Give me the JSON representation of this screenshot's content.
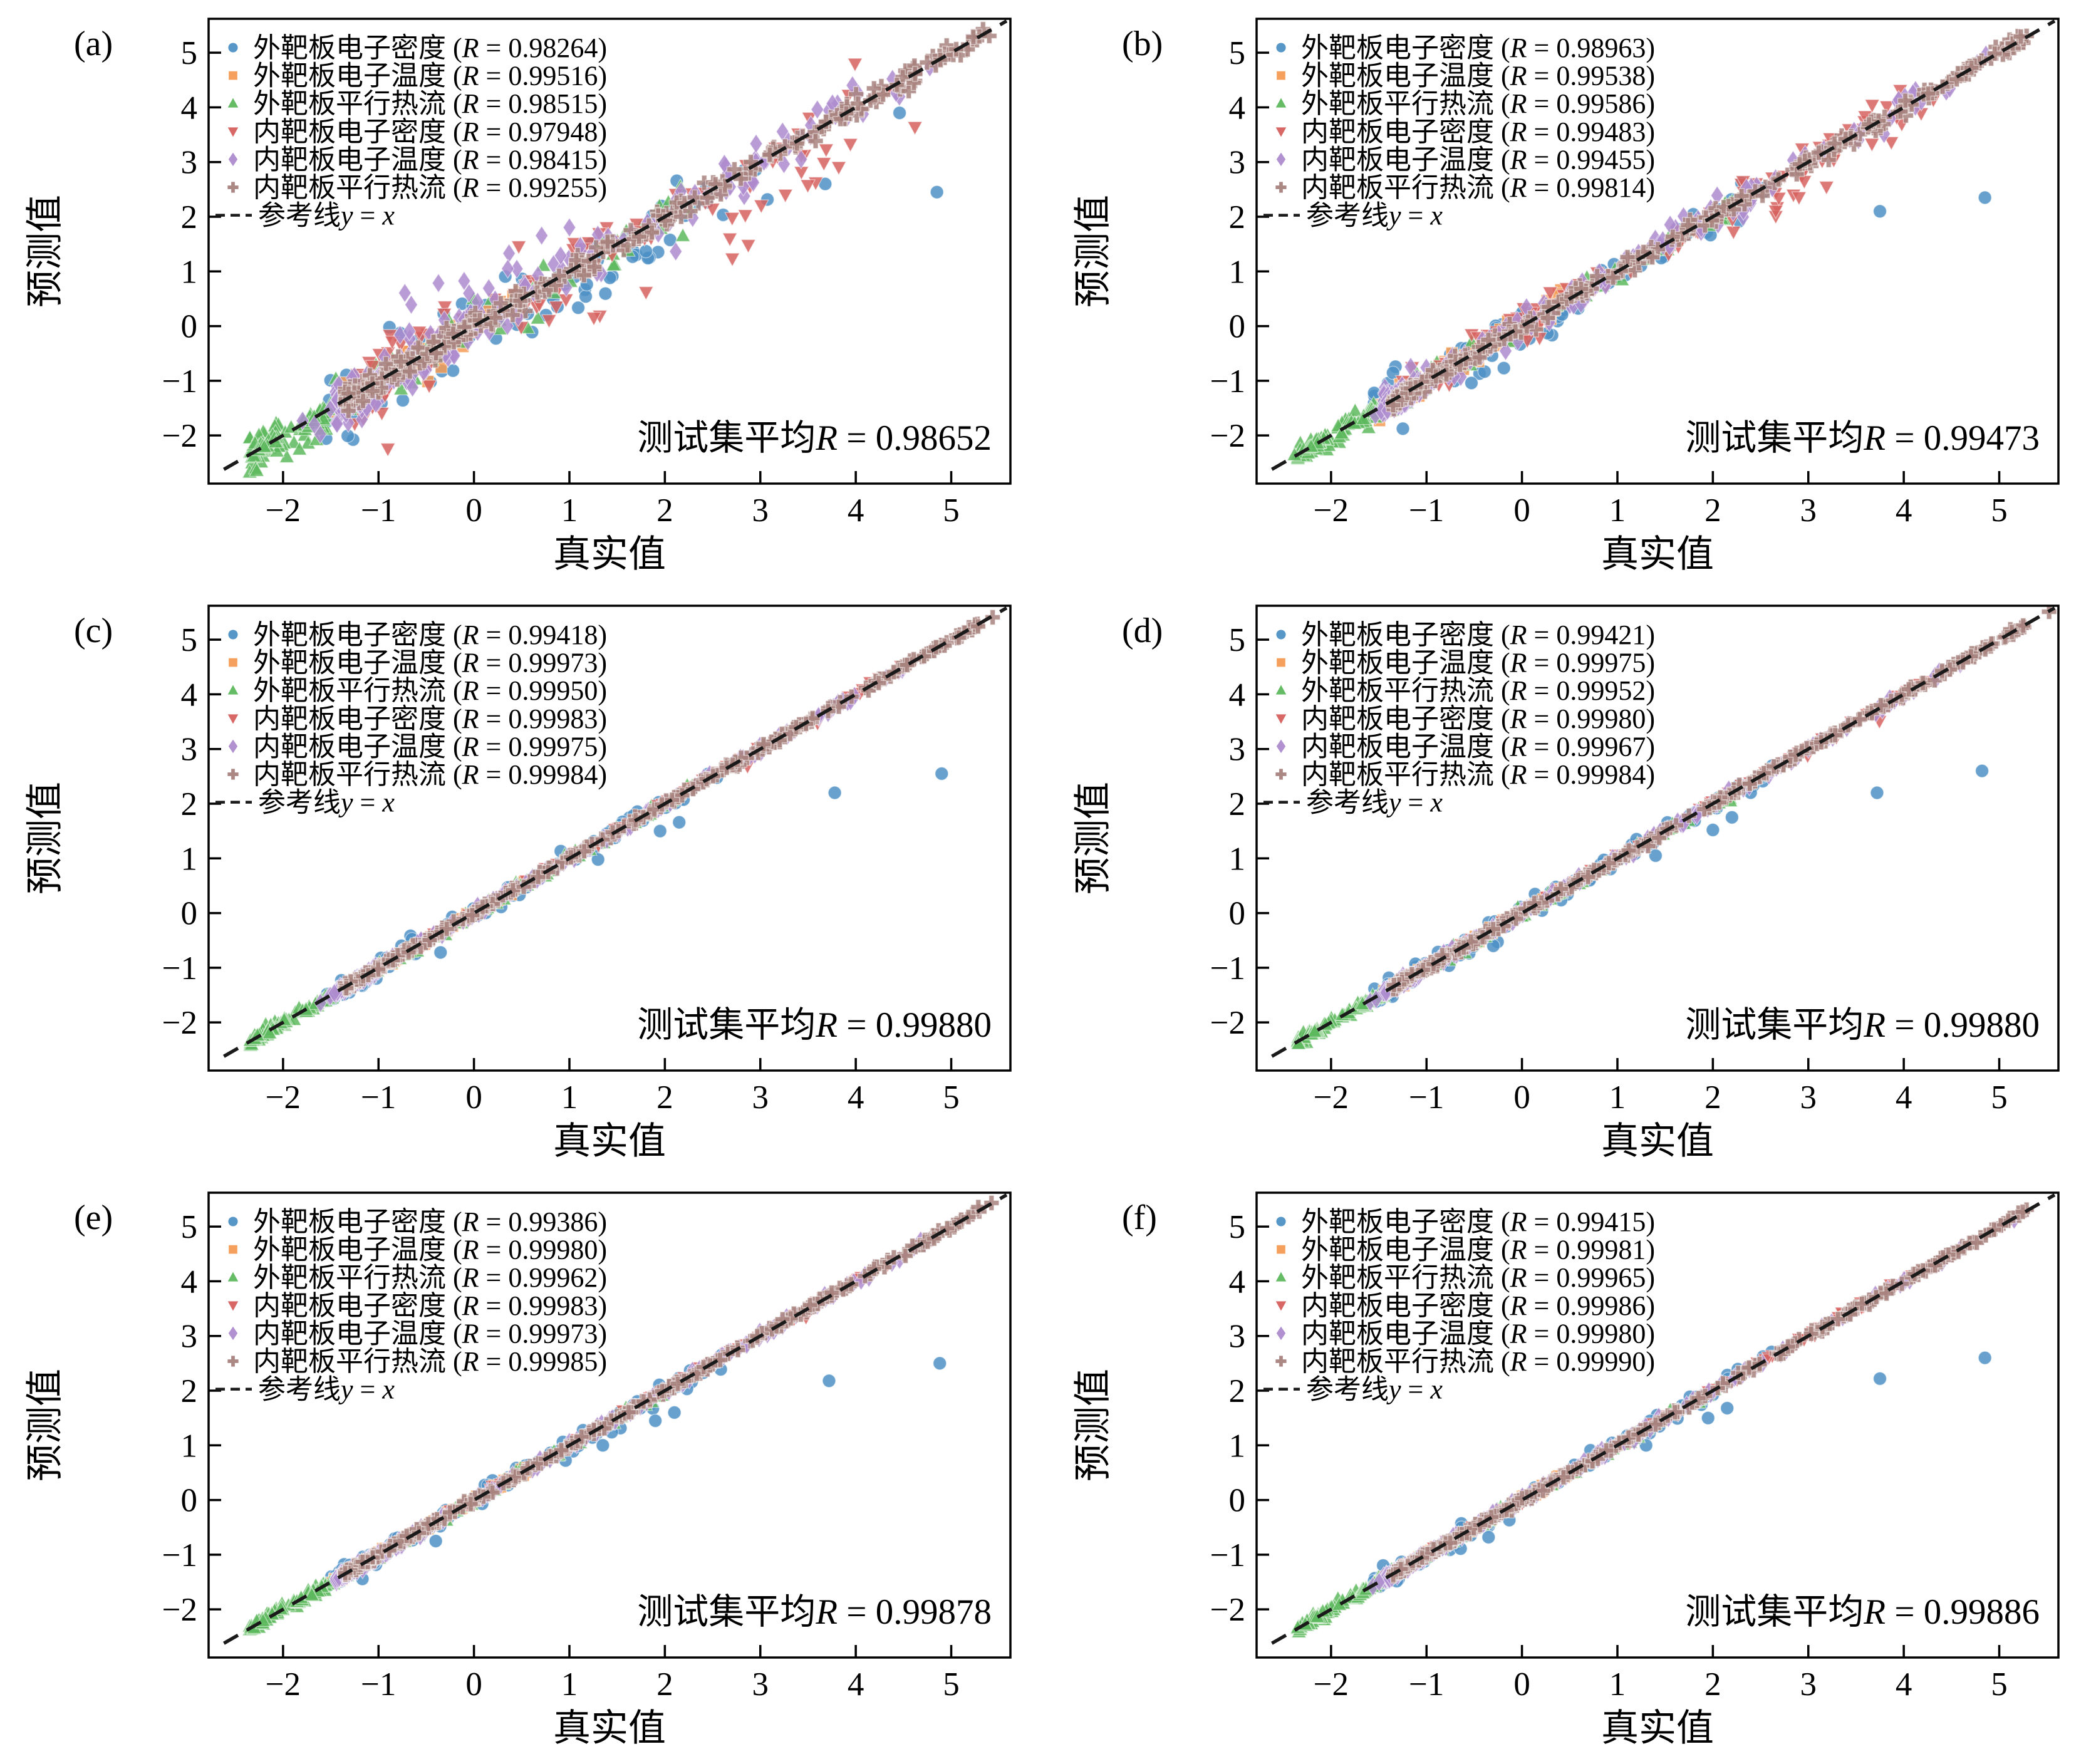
{
  "figure_title": "",
  "chart_data": {
    "type": "scatter",
    "xlabel": "真实值",
    "ylabel": "预测值",
    "xlim": [
      -2.78,
      5.62
    ],
    "ylim": [
      -2.88,
      5.62
    ],
    "x_ticks": [
      -2,
      -1,
      0,
      1,
      2,
      3,
      4,
      5
    ],
    "y_ticks": [
      -2,
      -1,
      0,
      1,
      2,
      3,
      4,
      5
    ],
    "grid": false,
    "legend_position": "upper-left",
    "minus_sign": "−",
    "r_symbol": "R",
    "legend_r_open": " (",
    "legend_r_eq": " = ",
    "legend_r_close": ")",
    "annotation_prefix": "测试集平均",
    "annotation_eq": " = ",
    "reference_line": {
      "label_prefix": "参考线",
      "formula_lhs": "y",
      "formula_eq": " = ",
      "formula_rhs": "x",
      "style": "dashed",
      "color": "#1a1a1a"
    },
    "series_defaults": [
      {
        "key": "out-ne",
        "label": "外靶板电子密度",
        "marker": "circle",
        "color": "#4e91c5",
        "n": 95,
        "x_range": [
          -1.55,
          2.65
        ],
        "skew": 1.5,
        "clusters": []
      },
      {
        "key": "out-te",
        "label": "外靶板电子温度",
        "marker": "square",
        "color": "#f59b54",
        "n": 80,
        "x_range": [
          -1.5,
          0.55
        ],
        "skew": 1.1,
        "clusters": []
      },
      {
        "key": "out-q",
        "label": "外靶板平行热流",
        "marker": "triangle-up",
        "color": "#5db85d",
        "n": 150,
        "x_range": [
          -2.35,
          2.3
        ],
        "skew": 1.7,
        "clusters": [
          {
            "cx": -2.17,
            "sx": 0.07,
            "n": 15,
            "dy": 0.02,
            "sy": 0.06
          },
          {
            "cx": -1.6,
            "sx": 0.1,
            "n": 24,
            "dy": -0.03,
            "sy": 0.08
          }
        ]
      },
      {
        "key": "in-ne",
        "label": "内靶板电子密度",
        "marker": "triangle-down",
        "color": "#d6605e",
        "n": 115,
        "x_range": [
          -1.25,
          4.35
        ],
        "skew": 1.8,
        "clusters": [
          {
            "cx": 3.6,
            "sx": 0.5,
            "n": 6,
            "dy": -0.25,
            "sy": 0.3
          }
        ]
      },
      {
        "key": "in-te",
        "label": "内靶板电子温度",
        "marker": "diamond",
        "color": "#ad8bce",
        "n": 165,
        "x_range": [
          -1.45,
          4.15
        ],
        "skew": 1.8,
        "clusters": [
          {
            "cx": -1.18,
            "sx": 0.16,
            "n": 55,
            "dy": -0.1,
            "sy": 0.14
          },
          {
            "cx": 4.45,
            "sx": 0.28,
            "n": 6,
            "dy": -0.05,
            "sy": 0.12
          }
        ]
      },
      {
        "key": "in-q",
        "label": "内靶板平行热流",
        "marker": "plus",
        "color": "#a8827e",
        "n": 300,
        "x_range": [
          -1.35,
          5.3
        ],
        "skew": 1.7,
        "clusters": [
          {
            "cx": 4.85,
            "sx": 0.3,
            "n": 9,
            "dy": -0.03,
            "sy": 0.08
          },
          {
            "cx": 3.5,
            "sx": 0.5,
            "n": 10,
            "dy": 0.02,
            "sy": 0.08
          }
        ]
      }
    ],
    "panels": [
      {
        "letter": "(a)",
        "avg_r": "0.98652",
        "r": [
          "0.98264",
          "0.99516",
          "0.98515",
          "0.97948",
          "0.98415",
          "0.99255"
        ],
        "sigma": [
          0.3,
          0.12,
          0.2,
          0.33,
          0.22,
          0.115
        ],
        "spread_scale": 1.0,
        "extra_clusters": {
          "out-ne": [
            {
              "cx": 1.05,
              "sx": 0.4,
              "n": 16,
              "dy": -0.5,
              "sy": 0.22
            },
            {
              "cx": 3.2,
              "sx": 0.9,
              "n": 5,
              "dy": -0.6,
              "sy": 0.45
            }
          ],
          "in-ne": [
            {
              "cx": 2.9,
              "sx": 0.7,
              "n": 12,
              "dy": -0.85,
              "sy": 0.35
            }
          ],
          "in-te": [
            {
              "cx": -0.25,
              "sx": 0.5,
              "n": 9,
              "dy": 0.9,
              "sy": 0.3
            },
            {
              "cx": 0.35,
              "sx": 0.5,
              "n": 8,
              "dy": 0.5,
              "sy": 0.2
            }
          ]
        },
        "outliers": {
          "out-ne": [
            [
              3.68,
              2.6
            ],
            [
              4.85,
              2.45
            ]
          ]
        }
      },
      {
        "letter": "(b)",
        "avg_r": "0.99473",
        "r": [
          "0.98963",
          "0.99538",
          "0.99586",
          "0.99483",
          "0.99455",
          "0.99814"
        ],
        "sigma": [
          0.2,
          0.1,
          0.11,
          0.16,
          0.13,
          0.065
        ],
        "spread_scale": 0.55,
        "extra_clusters": {
          "out-ne": [
            {
              "cx": 0.8,
              "sx": 0.5,
              "n": 12,
              "dy": -0.4,
              "sy": 0.15
            }
          ],
          "in-ne": [
            {
              "cx": 2.85,
              "sx": 0.3,
              "n": 9,
              "dy": -0.75,
              "sy": 0.2
            },
            {
              "cx": 4.0,
              "sx": 0.3,
              "n": 4,
              "dy": -0.5,
              "sy": 0.25
            }
          ],
          "out-te": [
            {
              "cx": -0.8,
              "sx": 0.4,
              "n": 10,
              "dy": 0.3,
              "sy": 0.12
            }
          ]
        },
        "outliers": {
          "out-ne": [
            [
              3.75,
              2.1
            ],
            [
              4.85,
              2.35
            ]
          ]
        }
      },
      {
        "letter": "(c)",
        "avg_r": "0.99880",
        "r": [
          "0.99418",
          "0.99973",
          "0.99950",
          "0.99983",
          "0.99975",
          "0.99984"
        ],
        "sigma": [
          0.095,
          0.028,
          0.045,
          0.028,
          0.035,
          0.028
        ],
        "spread_scale": 0.22,
        "extra_clusters": {},
        "outliers": {
          "out-ne": [
            [
              3.78,
              2.2
            ],
            [
              4.9,
              2.55
            ],
            [
              1.95,
              1.5
            ],
            [
              2.15,
              1.66
            ],
            [
              1.3,
              0.98
            ],
            [
              -0.35,
              -0.72
            ]
          ]
        }
      },
      {
        "letter": "(d)",
        "avg_r": "0.99880",
        "r": [
          "0.99421",
          "0.99975",
          "0.99952",
          "0.99980",
          "0.99967",
          "0.99984"
        ],
        "sigma": [
          0.095,
          0.028,
          0.045,
          0.028,
          0.034,
          0.028
        ],
        "spread_scale": 0.22,
        "extra_clusters": {},
        "outliers": {
          "out-ne": [
            [
              3.72,
              2.2
            ],
            [
              4.82,
              2.6
            ],
            [
              2.0,
              1.52
            ],
            [
              1.4,
              1.05
            ],
            [
              2.2,
              1.75
            ],
            [
              -0.3,
              -0.6
            ]
          ]
        }
      },
      {
        "letter": "(e)",
        "avg_r": "0.99878",
        "r": [
          "0.99386",
          "0.99980",
          "0.99962",
          "0.99983",
          "0.99973",
          "0.99985"
        ],
        "sigma": [
          0.1,
          0.027,
          0.044,
          0.028,
          0.034,
          0.027
        ],
        "spread_scale": 0.22,
        "extra_clusters": {},
        "outliers": {
          "out-ne": [
            [
              3.72,
              2.18
            ],
            [
              4.88,
              2.5
            ],
            [
              1.9,
              1.45
            ],
            [
              1.35,
              1.0
            ],
            [
              2.1,
              1.6
            ],
            [
              -0.4,
              -0.75
            ]
          ]
        }
      },
      {
        "letter": "(f)",
        "avg_r": "0.99886",
        "r": [
          "0.99415",
          "0.99981",
          "0.99965",
          "0.99986",
          "0.99980",
          "0.99990"
        ],
        "sigma": [
          0.095,
          0.026,
          0.042,
          0.026,
          0.032,
          0.025
        ],
        "spread_scale": 0.2,
        "extra_clusters": {},
        "outliers": {
          "out-ne": [
            [
              3.75,
              2.22
            ],
            [
              4.85,
              2.6
            ],
            [
              1.95,
              1.5
            ],
            [
              2.15,
              1.68
            ],
            [
              1.3,
              1.0
            ],
            [
              -0.35,
              -0.68
            ]
          ]
        }
      }
    ]
  },
  "colors": {
    "background": "#ffffff",
    "axis": "#000000",
    "reference_line": "#1a1a1a",
    "series": [
      "#4e91c5",
      "#f59b54",
      "#5db85d",
      "#d6605e",
      "#ad8bce",
      "#a8827e"
    ]
  }
}
